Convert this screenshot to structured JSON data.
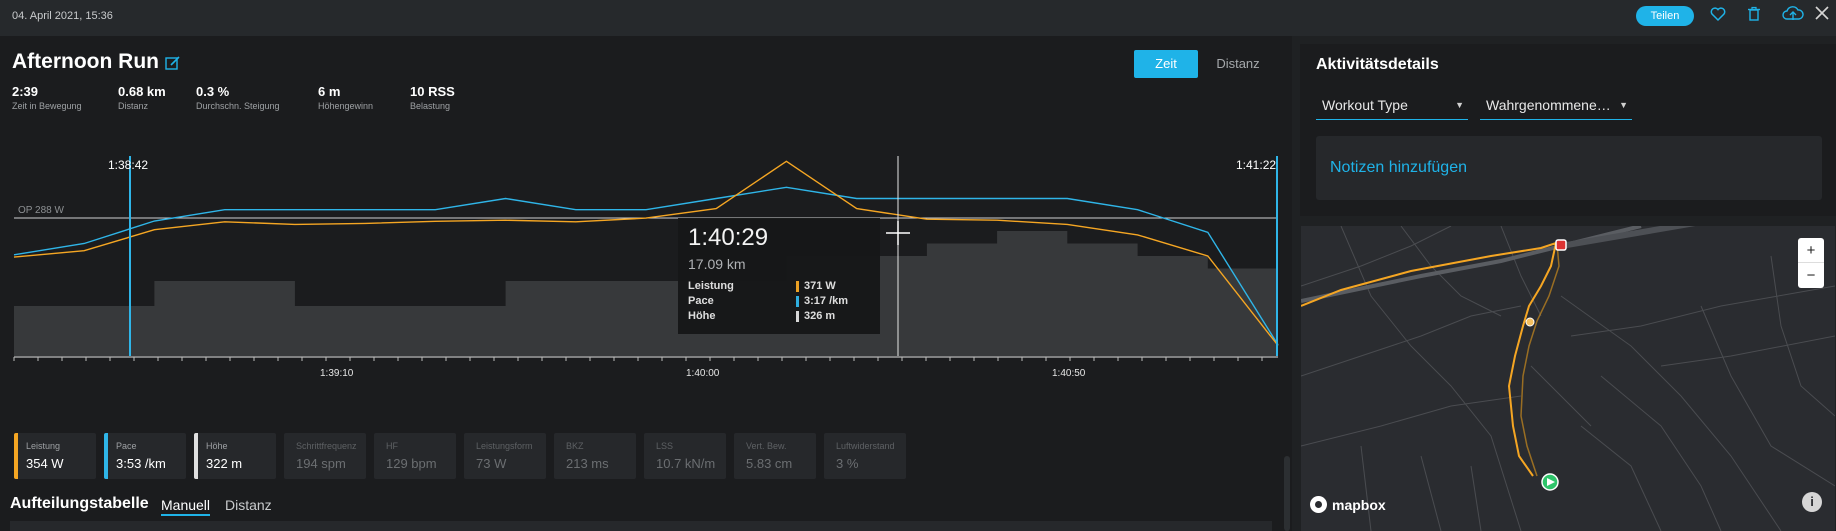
{
  "topbar": {
    "date": "04. April 2021, 15:36",
    "share_label": "Teilen",
    "icons": [
      "heart-icon",
      "trash-icon",
      "cloud-upload-icon",
      "close-icon"
    ]
  },
  "activity": {
    "title": "Afternoon Run",
    "view_toggle": {
      "active": "Zeit",
      "inactive": "Distanz"
    },
    "stats": [
      {
        "value": "2:39",
        "label": "Zeit in Bewegung"
      },
      {
        "value": "0.68 km",
        "label": "Distanz"
      },
      {
        "value": "0.3 %",
        "label": "Durchschn. Steigung"
      },
      {
        "value": "6 m",
        "label": "Höhengewinn"
      },
      {
        "value": "10 RSS",
        "label": "Belastung"
      }
    ]
  },
  "chart_data": {
    "type": "line",
    "x_ticks": [
      "1:39:10",
      "1:40:00",
      "1:40:50"
    ],
    "range_start": "1:38:42",
    "range_end": "1:41:22",
    "reference_label": "OP 288 W",
    "colors": {
      "power": "#f5a623",
      "pace": "#2fb5e8",
      "elevation": "#3a3b3d"
    },
    "series": [
      {
        "name": "Leistung",
        "values": [
          288,
          300,
          340,
          355,
          350,
          352,
          356,
          358,
          355,
          362,
          380,
          470,
          380,
          360,
          358,
          350,
          330,
          290,
          120
        ]
      },
      {
        "name": "Pace",
        "values": [
          3.7,
          3.6,
          3.4,
          3.3,
          3.3,
          3.3,
          3.3,
          3.2,
          3.3,
          3.3,
          3.2,
          3.1,
          3.2,
          3.2,
          3.2,
          3.2,
          3.3,
          3.5,
          4.5
        ]
      },
      {
        "name": "Höhe",
        "values": [
          322,
          322,
          324,
          324,
          322,
          322,
          322,
          324,
          324,
          324,
          324,
          326,
          326,
          327,
          328,
          327,
          326,
          325,
          325
        ]
      }
    ]
  },
  "tooltip": {
    "time": "1:40:29",
    "distance": "17.09 km",
    "rows": [
      {
        "label": "Leistung",
        "value": "371 W",
        "color": "#f5a623"
      },
      {
        "label": "Pace",
        "value": "3:17 /km",
        "color": "#2fb5e8"
      },
      {
        "label": "Höhe",
        "value": "326 m",
        "color": "#e0e0e0"
      }
    ]
  },
  "metrics": [
    {
      "label": "Leistung",
      "value": "354 W",
      "color": "#f5a623",
      "active": true
    },
    {
      "label": "Pace",
      "value": "3:53 /km",
      "color": "#2fb5e8",
      "active": true
    },
    {
      "label": "Höhe",
      "value": "322 m",
      "color": "#e0e0e0",
      "active": true
    },
    {
      "label": "Schrittfrequenz",
      "value": "194 spm",
      "active": false
    },
    {
      "label": "HF",
      "value": "129 bpm",
      "active": false
    },
    {
      "label": "Leistungsform",
      "value": "73 W",
      "active": false
    },
    {
      "label": "BKZ",
      "value": "213 ms",
      "active": false
    },
    {
      "label": "LSS",
      "value": "10.7 kN/m",
      "active": false
    },
    {
      "label": "Vert. Bew.",
      "value": "5.83 cm",
      "active": false
    },
    {
      "label": "Luftwiderstand",
      "value": "3 %",
      "active": false
    }
  ],
  "splits": {
    "title": "Aufteilungstabelle",
    "tabs": [
      "Manuell",
      "Distanz"
    ]
  },
  "details": {
    "title": "Aktivitätsdetails",
    "workout_type": "Workout Type",
    "perceived": "Wahrgenommene…",
    "notes": "Notizen hinzufügen"
  },
  "map": {
    "zoom_in": "+",
    "zoom_out": "−",
    "attribution": "mapbox",
    "info": "i"
  }
}
